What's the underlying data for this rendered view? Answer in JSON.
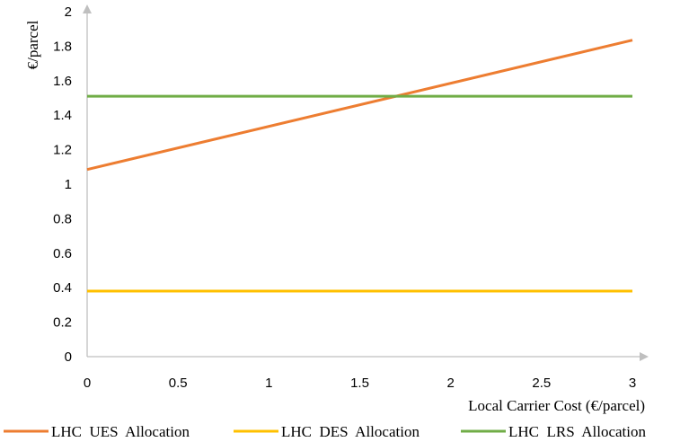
{
  "chart_data": {
    "type": "line",
    "title": "",
    "xlabel": "Local  Carrier  Cost  (€/parcel)",
    "ylabel": "€/parcel",
    "xlim": [
      0,
      3
    ],
    "ylim": [
      0,
      2
    ],
    "x_ticks": [
      "0",
      "0.5",
      "1",
      "1.5",
      "2",
      "2.5",
      "3"
    ],
    "y_ticks": [
      "0",
      "0.2",
      "0.4",
      "0.6",
      "0.8",
      "1",
      "1.2",
      "1.4",
      "1.6",
      "1.8",
      "2"
    ],
    "grid": false,
    "legend_position": "bottom",
    "series": [
      {
        "name": "LHC  UES  Allocation",
        "color": "#ED7D31",
        "x": [
          0,
          3
        ],
        "y": [
          1.085,
          1.835
        ]
      },
      {
        "name": "LHC  DES  Allocation",
        "color": "#FFC000",
        "x": [
          0,
          3
        ],
        "y": [
          0.38,
          0.38
        ]
      },
      {
        "name": "LHC  LRS  Allocation",
        "color": "#70AD47",
        "x": [
          0,
          3
        ],
        "y": [
          1.51,
          1.51
        ]
      }
    ]
  }
}
